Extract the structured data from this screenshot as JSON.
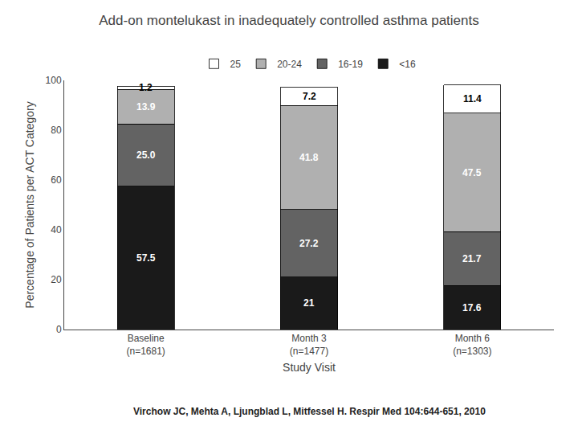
{
  "chart_data": {
    "type": "bar",
    "stacked": true,
    "title": "Add-on montelukast in inadequately controlled asthma patients",
    "xlabel": "Study Visit",
    "ylabel": "Percentage of Patients per ACT Category",
    "categories": [
      "Baseline\n(n=1681)",
      "Month 3\n(n=1477)",
      "Month 6\n(n=1303)"
    ],
    "series": [
      {
        "name": "<16",
        "color": "#1a1a1a",
        "values": [
          57.5,
          21.0,
          17.6
        ],
        "value_labels": [
          "57.5",
          "21",
          "17.6"
        ]
      },
      {
        "name": "16-19",
        "color": "#636363",
        "values": [
          25.0,
          27.2,
          21.7
        ],
        "value_labels": [
          "25.0",
          "27.2",
          "21.7"
        ]
      },
      {
        "name": "20-24",
        "color": "#b0b0b0",
        "values": [
          13.9,
          41.8,
          47.5
        ],
        "value_labels": [
          "13.9",
          "41.8",
          "47.5"
        ]
      },
      {
        "name": "25",
        "color": "#ffffff",
        "values": [
          1.2,
          7.2,
          11.4
        ],
        "value_labels": [
          "1.2",
          "7.2",
          "11.4"
        ]
      }
    ],
    "ylim": [
      0,
      100
    ],
    "yticks": [
      0,
      20,
      40,
      60,
      80,
      100
    ],
    "grid": false,
    "legend": "top",
    "data_labels": true,
    "annotations": [
      "Virchow JC, Mehta A, Ljungblad L, Mitfessel H. Respir Med 104:644-651, 2010"
    ]
  }
}
